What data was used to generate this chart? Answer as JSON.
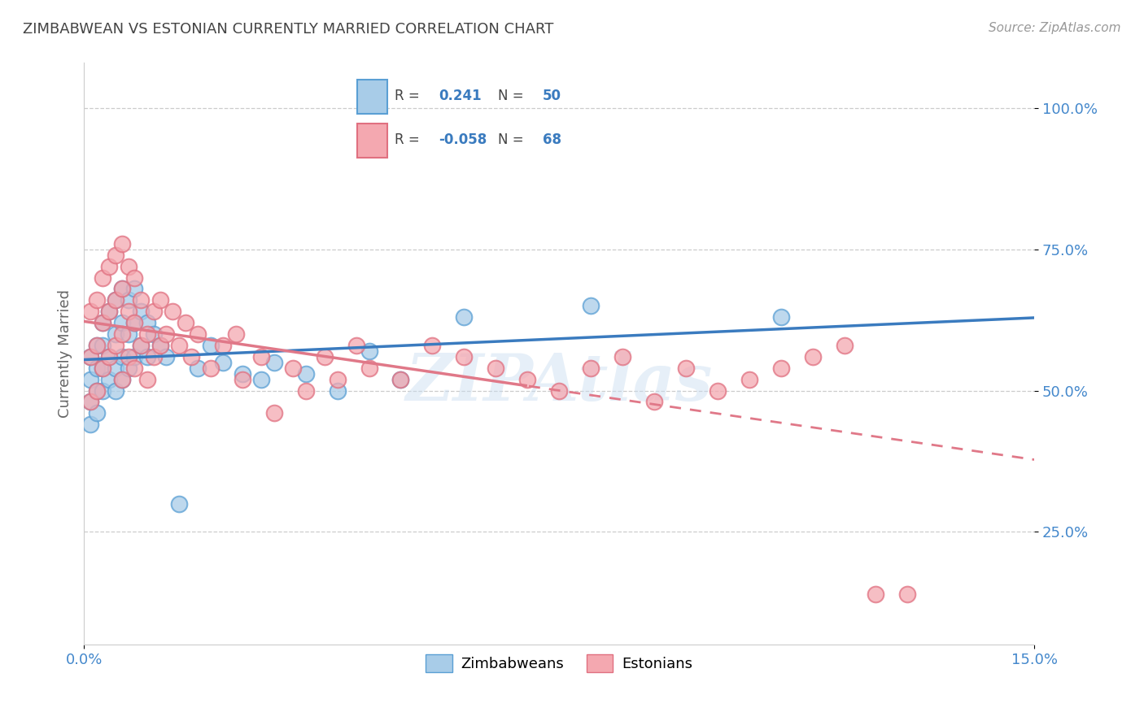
{
  "title": "ZIMBABWEAN VS ESTONIAN CURRENTLY MARRIED CORRELATION CHART",
  "source_text": "Source: ZipAtlas.com",
  "ylabel": "Currently Married",
  "xlim": [
    0.0,
    0.15
  ],
  "ylim": [
    0.05,
    1.08
  ],
  "ytick_positions": [
    0.25,
    0.5,
    0.75,
    1.0
  ],
  "ytick_labels": [
    "25.0%",
    "50.0%",
    "75.0%",
    "100.0%"
  ],
  "blue_R": "0.241",
  "blue_N": "50",
  "pink_R": "-0.058",
  "pink_N": "68",
  "blue_color": "#a8cce8",
  "pink_color": "#f4a8b0",
  "blue_edge_color": "#5a9fd4",
  "pink_edge_color": "#e07080",
  "blue_line_color": "#3a7bbf",
  "pink_line_color": "#e07888",
  "legend_label_blue": "Zimbabweans",
  "legend_label_pink": "Estonians",
  "watermark": "ZIPAtlas",
  "background_color": "#ffffff",
  "grid_color": "#cccccc",
  "title_color": "#444444",
  "tick_color": "#4488cc",
  "blue_x": [
    0.001,
    0.001,
    0.001,
    0.001,
    0.002,
    0.002,
    0.002,
    0.002,
    0.003,
    0.003,
    0.003,
    0.003,
    0.004,
    0.004,
    0.004,
    0.005,
    0.005,
    0.005,
    0.005,
    0.006,
    0.006,
    0.006,
    0.006,
    0.007,
    0.007,
    0.007,
    0.008,
    0.008,
    0.008,
    0.009,
    0.009,
    0.01,
    0.01,
    0.011,
    0.012,
    0.013,
    0.015,
    0.018,
    0.02,
    0.022,
    0.025,
    0.028,
    0.03,
    0.035,
    0.04,
    0.045,
    0.05,
    0.06,
    0.08,
    0.11
  ],
  "blue_y": [
    0.44,
    0.48,
    0.52,
    0.56,
    0.46,
    0.5,
    0.54,
    0.58,
    0.5,
    0.54,
    0.58,
    0.62,
    0.52,
    0.56,
    0.64,
    0.5,
    0.54,
    0.6,
    0.66,
    0.52,
    0.56,
    0.62,
    0.68,
    0.54,
    0.6,
    0.66,
    0.56,
    0.62,
    0.68,
    0.58,
    0.64,
    0.56,
    0.62,
    0.6,
    0.58,
    0.56,
    0.3,
    0.54,
    0.58,
    0.55,
    0.53,
    0.52,
    0.55,
    0.53,
    0.5,
    0.57,
    0.52,
    0.63,
    0.65,
    0.63
  ],
  "pink_x": [
    0.001,
    0.001,
    0.001,
    0.002,
    0.002,
    0.002,
    0.003,
    0.003,
    0.003,
    0.004,
    0.004,
    0.004,
    0.005,
    0.005,
    0.005,
    0.006,
    0.006,
    0.006,
    0.006,
    0.007,
    0.007,
    0.007,
    0.008,
    0.008,
    0.008,
    0.009,
    0.009,
    0.01,
    0.01,
    0.011,
    0.011,
    0.012,
    0.012,
    0.013,
    0.014,
    0.015,
    0.016,
    0.017,
    0.018,
    0.02,
    0.022,
    0.024,
    0.025,
    0.028,
    0.03,
    0.033,
    0.035,
    0.038,
    0.04,
    0.043,
    0.045,
    0.05,
    0.055,
    0.06,
    0.065,
    0.07,
    0.075,
    0.08,
    0.085,
    0.09,
    0.095,
    0.1,
    0.105,
    0.11,
    0.115,
    0.12,
    0.125,
    0.13
  ],
  "pink_y": [
    0.48,
    0.56,
    0.64,
    0.5,
    0.58,
    0.66,
    0.54,
    0.62,
    0.7,
    0.56,
    0.64,
    0.72,
    0.58,
    0.66,
    0.74,
    0.52,
    0.6,
    0.68,
    0.76,
    0.56,
    0.64,
    0.72,
    0.54,
    0.62,
    0.7,
    0.58,
    0.66,
    0.52,
    0.6,
    0.56,
    0.64,
    0.58,
    0.66,
    0.6,
    0.64,
    0.58,
    0.62,
    0.56,
    0.6,
    0.54,
    0.58,
    0.6,
    0.52,
    0.56,
    0.46,
    0.54,
    0.5,
    0.56,
    0.52,
    0.58,
    0.54,
    0.52,
    0.58,
    0.56,
    0.54,
    0.52,
    0.5,
    0.54,
    0.56,
    0.48,
    0.54,
    0.5,
    0.52,
    0.54,
    0.56,
    0.58,
    0.14,
    0.14
  ]
}
